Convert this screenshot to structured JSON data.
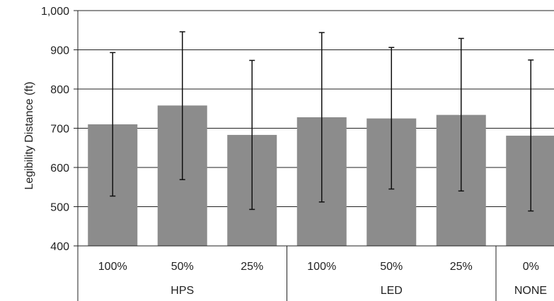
{
  "chart_data": {
    "type": "bar",
    "title": "",
    "xlabel": "",
    "ylabel": "Legibility Distance (ft)",
    "ylim": [
      400,
      1000
    ],
    "yticks": [
      400,
      500,
      600,
      700,
      800,
      900,
      1000
    ],
    "ytick_labels": [
      "400",
      "500",
      "600",
      "700",
      "800",
      "900",
      "1,000"
    ],
    "grid": true,
    "categories": [
      "100%",
      "50%",
      "25%",
      "100%",
      "50%",
      "25%",
      "0%"
    ],
    "groups": [
      {
        "label": "HPS",
        "count": 3
      },
      {
        "label": "LED",
        "count": 3
      },
      {
        "label": "NONE",
        "count": 1
      }
    ],
    "values": [
      710,
      758,
      683,
      728,
      725,
      734,
      681
    ],
    "error_low": [
      527,
      569,
      493,
      512,
      545,
      540,
      489
    ],
    "error_high": [
      893,
      946,
      873,
      944,
      906,
      929,
      874
    ],
    "bar_color": "#8c8c8c"
  }
}
